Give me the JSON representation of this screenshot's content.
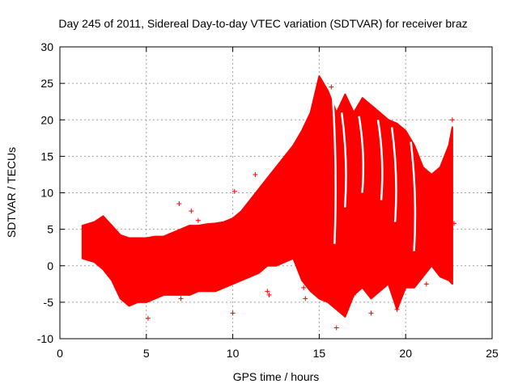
{
  "chart_data": {
    "type": "scatter",
    "title": "Day 245 of 2011, Sidereal Day-to-day VTEC variation (SDTVAR) for receiver braz",
    "xlabel": "GPS time / hours",
    "ylabel": "SDTVAR / TECUs",
    "xlim": [
      0,
      25
    ],
    "ylim": [
      -10,
      30
    ],
    "xticks": [
      0,
      5,
      10,
      15,
      20,
      25
    ],
    "yticks": [
      -10,
      -5,
      0,
      5,
      10,
      15,
      20,
      25,
      30
    ],
    "grid": true,
    "marker": "+",
    "color": "#ff0000",
    "band": {
      "x": [
        1.3,
        2.0,
        2.5,
        3.0,
        3.5,
        4.0,
        4.5,
        5.0,
        5.5,
        6.0,
        6.5,
        7.0,
        7.5,
        8.0,
        8.5,
        9.0,
        9.5,
        10.0,
        10.5,
        11.0,
        11.5,
        12.0,
        12.5,
        13.0,
        13.5,
        14.0,
        14.5,
        15.0,
        15.5,
        16.0,
        16.5,
        17.0,
        17.5,
        18.0,
        18.5,
        19.0,
        19.5,
        20.0,
        20.5,
        21.0,
        21.5,
        22.0,
        22.5,
        22.7
      ],
      "upper": [
        5.5,
        6.0,
        6.8,
        5.5,
        4.2,
        3.8,
        3.8,
        3.8,
        4.0,
        4.0,
        4.5,
        5.0,
        5.5,
        5.5,
        5.7,
        5.8,
        6.0,
        6.5,
        7.5,
        9.0,
        10.5,
        12.0,
        13.5,
        15.0,
        16.5,
        18.5,
        21.0,
        26.0,
        24.0,
        21.0,
        23.5,
        21.0,
        23.0,
        22.0,
        21.0,
        20.0,
        19.5,
        18.5,
        16.5,
        13.5,
        12.5,
        13.5,
        16.5,
        19.0
      ],
      "lower": [
        1.0,
        0.5,
        -0.5,
        -2.0,
        -4.5,
        -5.5,
        -5.0,
        -5.0,
        -4.5,
        -4.0,
        -4.0,
        -4.0,
        -4.0,
        -3.5,
        -3.5,
        -3.5,
        -3.0,
        -2.5,
        -2.0,
        -1.5,
        -1.0,
        0.0,
        0.0,
        0.5,
        1.0,
        -2.0,
        -3.5,
        -4.5,
        -5.0,
        -6.0,
        -7.0,
        -4.0,
        -3.0,
        -4.5,
        -3.5,
        -2.5,
        -6.0,
        -3.0,
        -3.0,
        -1.5,
        0.0,
        -1.5,
        -2.0,
        -2.5
      ]
    },
    "outliers": [
      {
        "x": 6.9,
        "y": 8.5
      },
      {
        "x": 7.6,
        "y": 7.5
      },
      {
        "x": 8.0,
        "y": 6.2
      },
      {
        "x": 10.1,
        "y": 10.2
      },
      {
        "x": 10.0,
        "y": -6.5
      },
      {
        "x": 11.3,
        "y": 12.5
      },
      {
        "x": 12.0,
        "y": -3.5
      },
      {
        "x": 12.1,
        "y": -4.0
      },
      {
        "x": 14.1,
        "y": -3.0
      },
      {
        "x": 14.2,
        "y": -4.5
      },
      {
        "x": 15.1,
        "y": -0.8
      },
      {
        "x": 15.7,
        "y": 24.5
      },
      {
        "x": 16.0,
        "y": -8.5
      },
      {
        "x": 16.6,
        "y": 3.5
      },
      {
        "x": 17.0,
        "y": -4.0
      },
      {
        "x": 17.5,
        "y": -1.5
      },
      {
        "x": 18.0,
        "y": -6.5
      },
      {
        "x": 19.5,
        "y": -6.0
      },
      {
        "x": 22.7,
        "y": 20.0
      },
      {
        "x": 22.8,
        "y": 5.8
      },
      {
        "x": 7.0,
        "y": -4.5
      },
      {
        "x": 5.1,
        "y": -7.2
      },
      {
        "x": 21.2,
        "y": -2.5
      },
      {
        "x": 13.2,
        "y": 4.8
      },
      {
        "x": 16.2,
        "y": 17.5
      },
      {
        "x": 18.6,
        "y": 4.8
      },
      {
        "x": 20.1,
        "y": 4.5
      }
    ]
  }
}
